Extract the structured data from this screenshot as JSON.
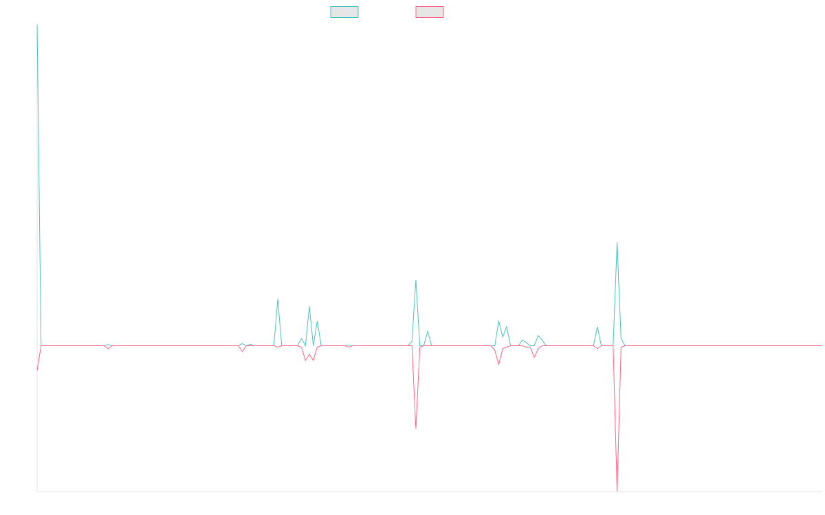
{
  "chart_data": {
    "type": "line",
    "title": "",
    "xlabel": "",
    "ylabel": "",
    "legend_position": "top",
    "grid": false,
    "ylim": [
      -100,
      220
    ],
    "n_points": 200,
    "series": [
      {
        "color": "#4bc0c0",
        "values": {
          "0": 220,
          "1": 0,
          "18": 0.8,
          "52": 1.5,
          "53": 0,
          "54": 1,
          "61": 32,
          "67": 5,
          "68": 0,
          "69": 27,
          "70": 0,
          "71": 17,
          "72": 0,
          "79": 0.5,
          "95": 3,
          "96": 45,
          "97": 0,
          "98": 0,
          "99": 10,
          "116": 0,
          "117": 17,
          "118": 6,
          "119": 13,
          "120": 0,
          "122": 0,
          "123": 4,
          "124": 2,
          "125": 0,
          "126": 0,
          "127": 7,
          "128": 4,
          "129": 0,
          "141": 0,
          "142": 13,
          "143": 0,
          "146": 0,
          "147": 71,
          "148": 5,
          "149": 0
        }
      },
      {
        "color": "#ff6384",
        "values": {
          "0": -17,
          "1": 0,
          "18": -2,
          "52": -4,
          "53": 0,
          "61": -1,
          "67": -1,
          "68": -10,
          "69": -6,
          "70": -10,
          "71": -1,
          "79": -1,
          "96": -57,
          "97": -1,
          "116": -3,
          "117": -13,
          "118": -2,
          "119": -1,
          "124": -1,
          "125": -1,
          "126": -8,
          "127": -2,
          "142": -2,
          "147": -100,
          "148": -1
        }
      }
    ]
  }
}
